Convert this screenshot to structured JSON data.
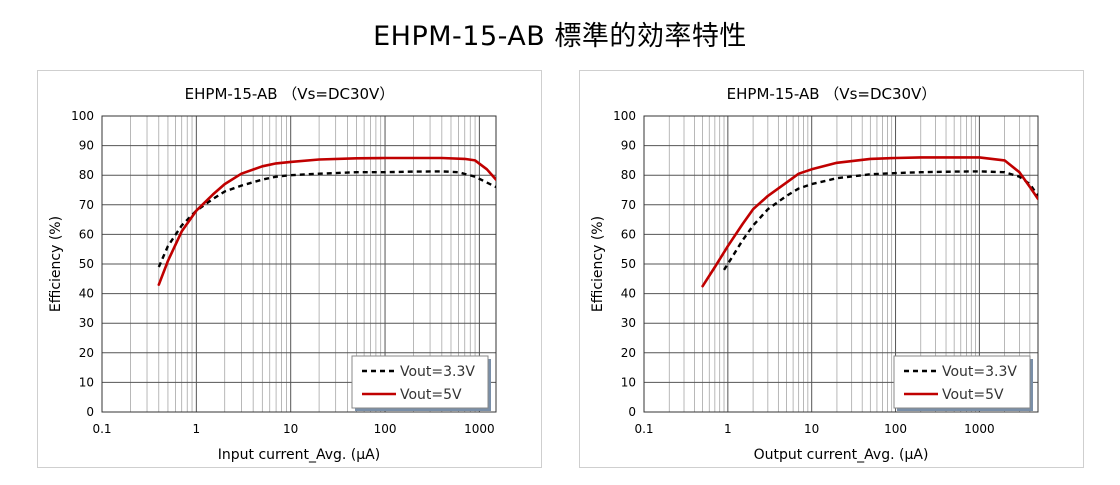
{
  "page": {
    "title": "EHPM-15-AB 標準的効率特性"
  },
  "chart_data": [
    {
      "type": "line",
      "title": "EHPM-15-AB （Vs=DC30V）",
      "xlabel": "Input current_Avg. (μA)",
      "ylabel": "Efficiency (%)",
      "x_scale": "log",
      "xlim": [
        0.1,
        1500
      ],
      "ylim": [
        0,
        100
      ],
      "x_ticks": [
        0.1,
        1,
        10,
        100,
        1000
      ],
      "x_tick_labels": [
        "0.1",
        "1",
        "10",
        "100",
        "1000"
      ],
      "y_ticks": [
        0,
        10,
        20,
        30,
        40,
        50,
        60,
        70,
        80,
        90,
        100
      ],
      "grid": true,
      "legend_position": "bottom-right",
      "series": [
        {
          "name": "Vout=3.3V",
          "color": "#000000",
          "dash": "dashed",
          "x": [
            0.4,
            0.5,
            0.7,
            1,
            1.5,
            2,
            3,
            5,
            7,
            10,
            20,
            50,
            100,
            200,
            400,
            600,
            900,
            1200,
            1500
          ],
          "y": [
            49,
            56,
            63,
            68,
            72,
            74.5,
            76.5,
            78.5,
            79.5,
            80,
            80.5,
            81,
            81,
            81.2,
            81.3,
            81,
            79.5,
            77.5,
            76
          ]
        },
        {
          "name": "Vout=5V",
          "color": "#c00000",
          "dash": "solid",
          "x": [
            0.4,
            0.5,
            0.7,
            1,
            1.5,
            2,
            3,
            5,
            7,
            10,
            20,
            50,
            100,
            200,
            400,
            700,
            900,
            1200,
            1500
          ],
          "y": [
            43,
            51,
            61,
            68,
            73.5,
            77,
            80.5,
            83,
            84,
            84.5,
            85.3,
            85.7,
            85.8,
            85.8,
            85.8,
            85.5,
            85,
            82,
            78.5
          ]
        }
      ]
    },
    {
      "type": "line",
      "title": "EHPM-15-AB （Vs=DC30V）",
      "xlabel": "Output current_Avg. (μA)",
      "ylabel": "Efficiency (%)",
      "x_scale": "log",
      "xlim": [
        0.1,
        5000
      ],
      "ylim": [
        0,
        100
      ],
      "x_ticks": [
        0.1,
        1,
        10,
        100,
        1000
      ],
      "x_tick_labels": [
        "0.1",
        "1",
        "10",
        "100",
        "1000"
      ],
      "y_ticks": [
        0,
        10,
        20,
        30,
        40,
        50,
        60,
        70,
        80,
        90,
        100
      ],
      "grid": true,
      "legend_position": "bottom-right",
      "series": [
        {
          "name": "Vout=3.3V",
          "color": "#000000",
          "dash": "dashed",
          "x": [
            0.9,
            1,
            1.5,
            2,
            3,
            5,
            7,
            10,
            20,
            50,
            100,
            200,
            500,
            1000,
            2000,
            3000,
            4000,
            5000
          ],
          "y": [
            48,
            50,
            58,
            63,
            68.5,
            73,
            75.5,
            77,
            79,
            80.3,
            80.7,
            81,
            81.2,
            81.3,
            81,
            79.5,
            77,
            73
          ]
        },
        {
          "name": "Vout=5V",
          "color": "#c00000",
          "dash": "solid",
          "x": [
            0.5,
            0.7,
            1,
            1.5,
            2,
            3,
            5,
            7,
            10,
            20,
            50,
            100,
            200,
            500,
            1000,
            2000,
            3000,
            4000,
            5000
          ],
          "y": [
            42.5,
            49,
            56,
            63.5,
            68.5,
            73,
            77.5,
            80.5,
            82,
            84.2,
            85.5,
            85.8,
            86,
            86,
            86,
            85,
            81,
            76,
            72
          ]
        }
      ]
    }
  ]
}
